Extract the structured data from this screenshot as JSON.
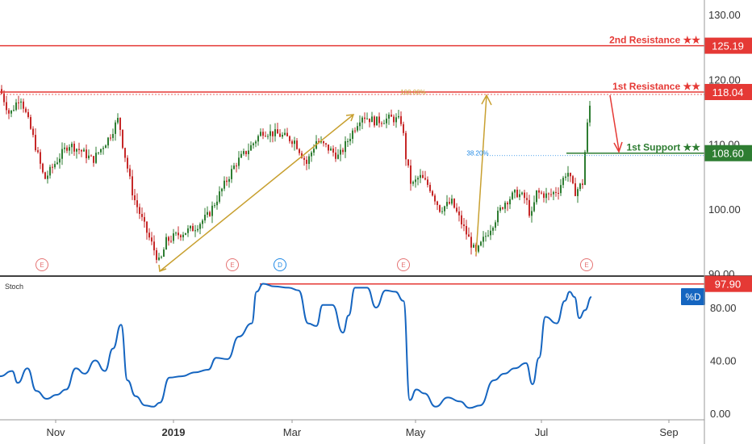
{
  "chart_data": [
    {
      "type": "candlestick",
      "title": "",
      "ylim": [
        88,
        132
      ],
      "y_ticks": [
        "130.00",
        "120.00",
        "110.00",
        "100.00",
        "90.00"
      ],
      "y_tick_values": [
        130,
        120,
        110,
        100,
        90
      ],
      "up_color": "#2e7d32",
      "down_color": "#c62828",
      "grid": false,
      "trend_points": [
        {
          "x": 0,
          "y": 118.5
        },
        {
          "x": 12,
          "y": 114.5
        },
        {
          "x": 25,
          "y": 117.5
        },
        {
          "x": 40,
          "y": 111.5
        },
        {
          "x": 55,
          "y": 104.5
        },
        {
          "x": 68,
          "y": 107
        },
        {
          "x": 85,
          "y": 110
        },
        {
          "x": 100,
          "y": 109
        },
        {
          "x": 115,
          "y": 107.5
        },
        {
          "x": 135,
          "y": 111
        },
        {
          "x": 147,
          "y": 114
        },
        {
          "x": 152,
          "y": 110
        },
        {
          "x": 165,
          "y": 102
        },
        {
          "x": 180,
          "y": 97
        },
        {
          "x": 190,
          "y": 94
        },
        {
          "x": 198,
          "y": 91.5
        },
        {
          "x": 206,
          "y": 95
        },
        {
          "x": 220,
          "y": 96
        },
        {
          "x": 240,
          "y": 97
        },
        {
          "x": 258,
          "y": 99
        },
        {
          "x": 275,
          "y": 103
        },
        {
          "x": 292,
          "y": 107
        },
        {
          "x": 310,
          "y": 109.5
        },
        {
          "x": 325,
          "y": 112
        },
        {
          "x": 345,
          "y": 111.5
        },
        {
          "x": 365,
          "y": 110.5
        },
        {
          "x": 380,
          "y": 107
        },
        {
          "x": 392,
          "y": 110.5
        },
        {
          "x": 405,
          "y": 109.5
        },
        {
          "x": 420,
          "y": 108
        },
        {
          "x": 435,
          "y": 111.5
        },
        {
          "x": 448,
          "y": 114.5
        },
        {
          "x": 465,
          "y": 113.5
        },
        {
          "x": 485,
          "y": 114
        },
        {
          "x": 498,
          "y": 113.5
        },
        {
          "x": 503,
          "y": 108
        },
        {
          "x": 510,
          "y": 103.5
        },
        {
          "x": 520,
          "y": 105
        },
        {
          "x": 532,
          "y": 103.5
        },
        {
          "x": 545,
          "y": 100
        },
        {
          "x": 560,
          "y": 101
        },
        {
          "x": 575,
          "y": 97
        },
        {
          "x": 590,
          "y": 93
        },
        {
          "x": 598,
          "y": 95
        },
        {
          "x": 612,
          "y": 98
        },
        {
          "x": 625,
          "y": 101
        },
        {
          "x": 640,
          "y": 102.5
        },
        {
          "x": 652,
          "y": 101.5
        },
        {
          "x": 658,
          "y": 98.5
        },
        {
          "x": 665,
          "y": 102.5
        },
        {
          "x": 680,
          "y": 102
        },
        {
          "x": 692,
          "y": 103
        },
        {
          "x": 703,
          "y": 106
        },
        {
          "x": 712,
          "y": 102.5
        },
        {
          "x": 722,
          "y": 104
        },
        {
          "x": 727,
          "y": 112
        },
        {
          "x": 733,
          "y": 117.8
        }
      ],
      "resistance_2": {
        "label": "2nd Resistance ★★",
        "value": 125.19,
        "value_label": "125.19",
        "color": "#e53935"
      },
      "resistance_1": {
        "label": "1st Resistance ★★",
        "value": 118.04,
        "value_label": "118.04",
        "color": "#e53935"
      },
      "support_1": {
        "label": "1st Support ★★",
        "value": 108.6,
        "value_label": "108.60",
        "color": "#2e7d32"
      },
      "fib_labels": {
        "top": "100.00%",
        "mid": "38.20%"
      },
      "event_markers": [
        {
          "x": 52,
          "label": "E"
        },
        {
          "x": 288,
          "label": "E"
        },
        {
          "x": 347,
          "label": "D"
        },
        {
          "x": 500,
          "label": "E"
        },
        {
          "x": 727,
          "label": "E"
        }
      ]
    },
    {
      "type": "line",
      "title": "Stoch",
      "series_name": "%D",
      "ylim": [
        0,
        100
      ],
      "y_ticks": [
        "80.00",
        "40.00",
        "0.00"
      ],
      "y_tick_values": [
        80,
        40,
        0
      ],
      "level_value": 97.9,
      "level_label": "97.90",
      "line_color": "#1565c0",
      "points": [
        {
          "x": 0,
          "y": 28
        },
        {
          "x": 15,
          "y": 32
        },
        {
          "x": 22,
          "y": 23
        },
        {
          "x": 34,
          "y": 34
        },
        {
          "x": 45,
          "y": 17
        },
        {
          "x": 58,
          "y": 11
        },
        {
          "x": 70,
          "y": 14
        },
        {
          "x": 82,
          "y": 18
        },
        {
          "x": 94,
          "y": 34
        },
        {
          "x": 105,
          "y": 30
        },
        {
          "x": 118,
          "y": 40
        },
        {
          "x": 130,
          "y": 32
        },
        {
          "x": 140,
          "y": 49
        },
        {
          "x": 150,
          "y": 67
        },
        {
          "x": 158,
          "y": 25
        },
        {
          "x": 168,
          "y": 13
        },
        {
          "x": 180,
          "y": 6
        },
        {
          "x": 190,
          "y": 5
        },
        {
          "x": 198,
          "y": 8
        },
        {
          "x": 210,
          "y": 27
        },
        {
          "x": 225,
          "y": 28
        },
        {
          "x": 242,
          "y": 31
        },
        {
          "x": 258,
          "y": 33
        },
        {
          "x": 268,
          "y": 42
        },
        {
          "x": 282,
          "y": 41
        },
        {
          "x": 296,
          "y": 58
        },
        {
          "x": 312,
          "y": 68
        },
        {
          "x": 318,
          "y": 92
        },
        {
          "x": 326,
          "y": 98
        },
        {
          "x": 340,
          "y": 96
        },
        {
          "x": 358,
          "y": 95
        },
        {
          "x": 370,
          "y": 93
        },
        {
          "x": 382,
          "y": 68
        },
        {
          "x": 392,
          "y": 66
        },
        {
          "x": 400,
          "y": 82
        },
        {
          "x": 412,
          "y": 82
        },
        {
          "x": 425,
          "y": 61
        },
        {
          "x": 432,
          "y": 74
        },
        {
          "x": 440,
          "y": 95
        },
        {
          "x": 455,
          "y": 95
        },
        {
          "x": 466,
          "y": 80
        },
        {
          "x": 478,
          "y": 93
        },
        {
          "x": 490,
          "y": 92
        },
        {
          "x": 500,
          "y": 85
        },
        {
          "x": 508,
          "y": 10
        },
        {
          "x": 516,
          "y": 18
        },
        {
          "x": 526,
          "y": 15
        },
        {
          "x": 540,
          "y": 5
        },
        {
          "x": 555,
          "y": 12
        },
        {
          "x": 570,
          "y": 9
        },
        {
          "x": 582,
          "y": 4
        },
        {
          "x": 595,
          "y": 6
        },
        {
          "x": 612,
          "y": 25
        },
        {
          "x": 625,
          "y": 30
        },
        {
          "x": 638,
          "y": 34
        },
        {
          "x": 652,
          "y": 38
        },
        {
          "x": 660,
          "y": 22
        },
        {
          "x": 668,
          "y": 42
        },
        {
          "x": 676,
          "y": 73
        },
        {
          "x": 690,
          "y": 68
        },
        {
          "x": 700,
          "y": 85
        },
        {
          "x": 706,
          "y": 92
        },
        {
          "x": 712,
          "y": 88
        },
        {
          "x": 718,
          "y": 72
        },
        {
          "x": 725,
          "y": 78
        },
        {
          "x": 733,
          "y": 88
        }
      ]
    }
  ],
  "x_axis": {
    "labels": [
      "Nov",
      "2019",
      "Mar",
      "May",
      "Jul",
      "Sep"
    ]
  },
  "colors": {
    "up": "#2e7d32",
    "down": "#c62828",
    "resistance": "#e53935",
    "support": "#2e7d32",
    "fib_arrow": "#c8a030",
    "stoch_line": "#1565c0",
    "axis_text": "#333333"
  }
}
